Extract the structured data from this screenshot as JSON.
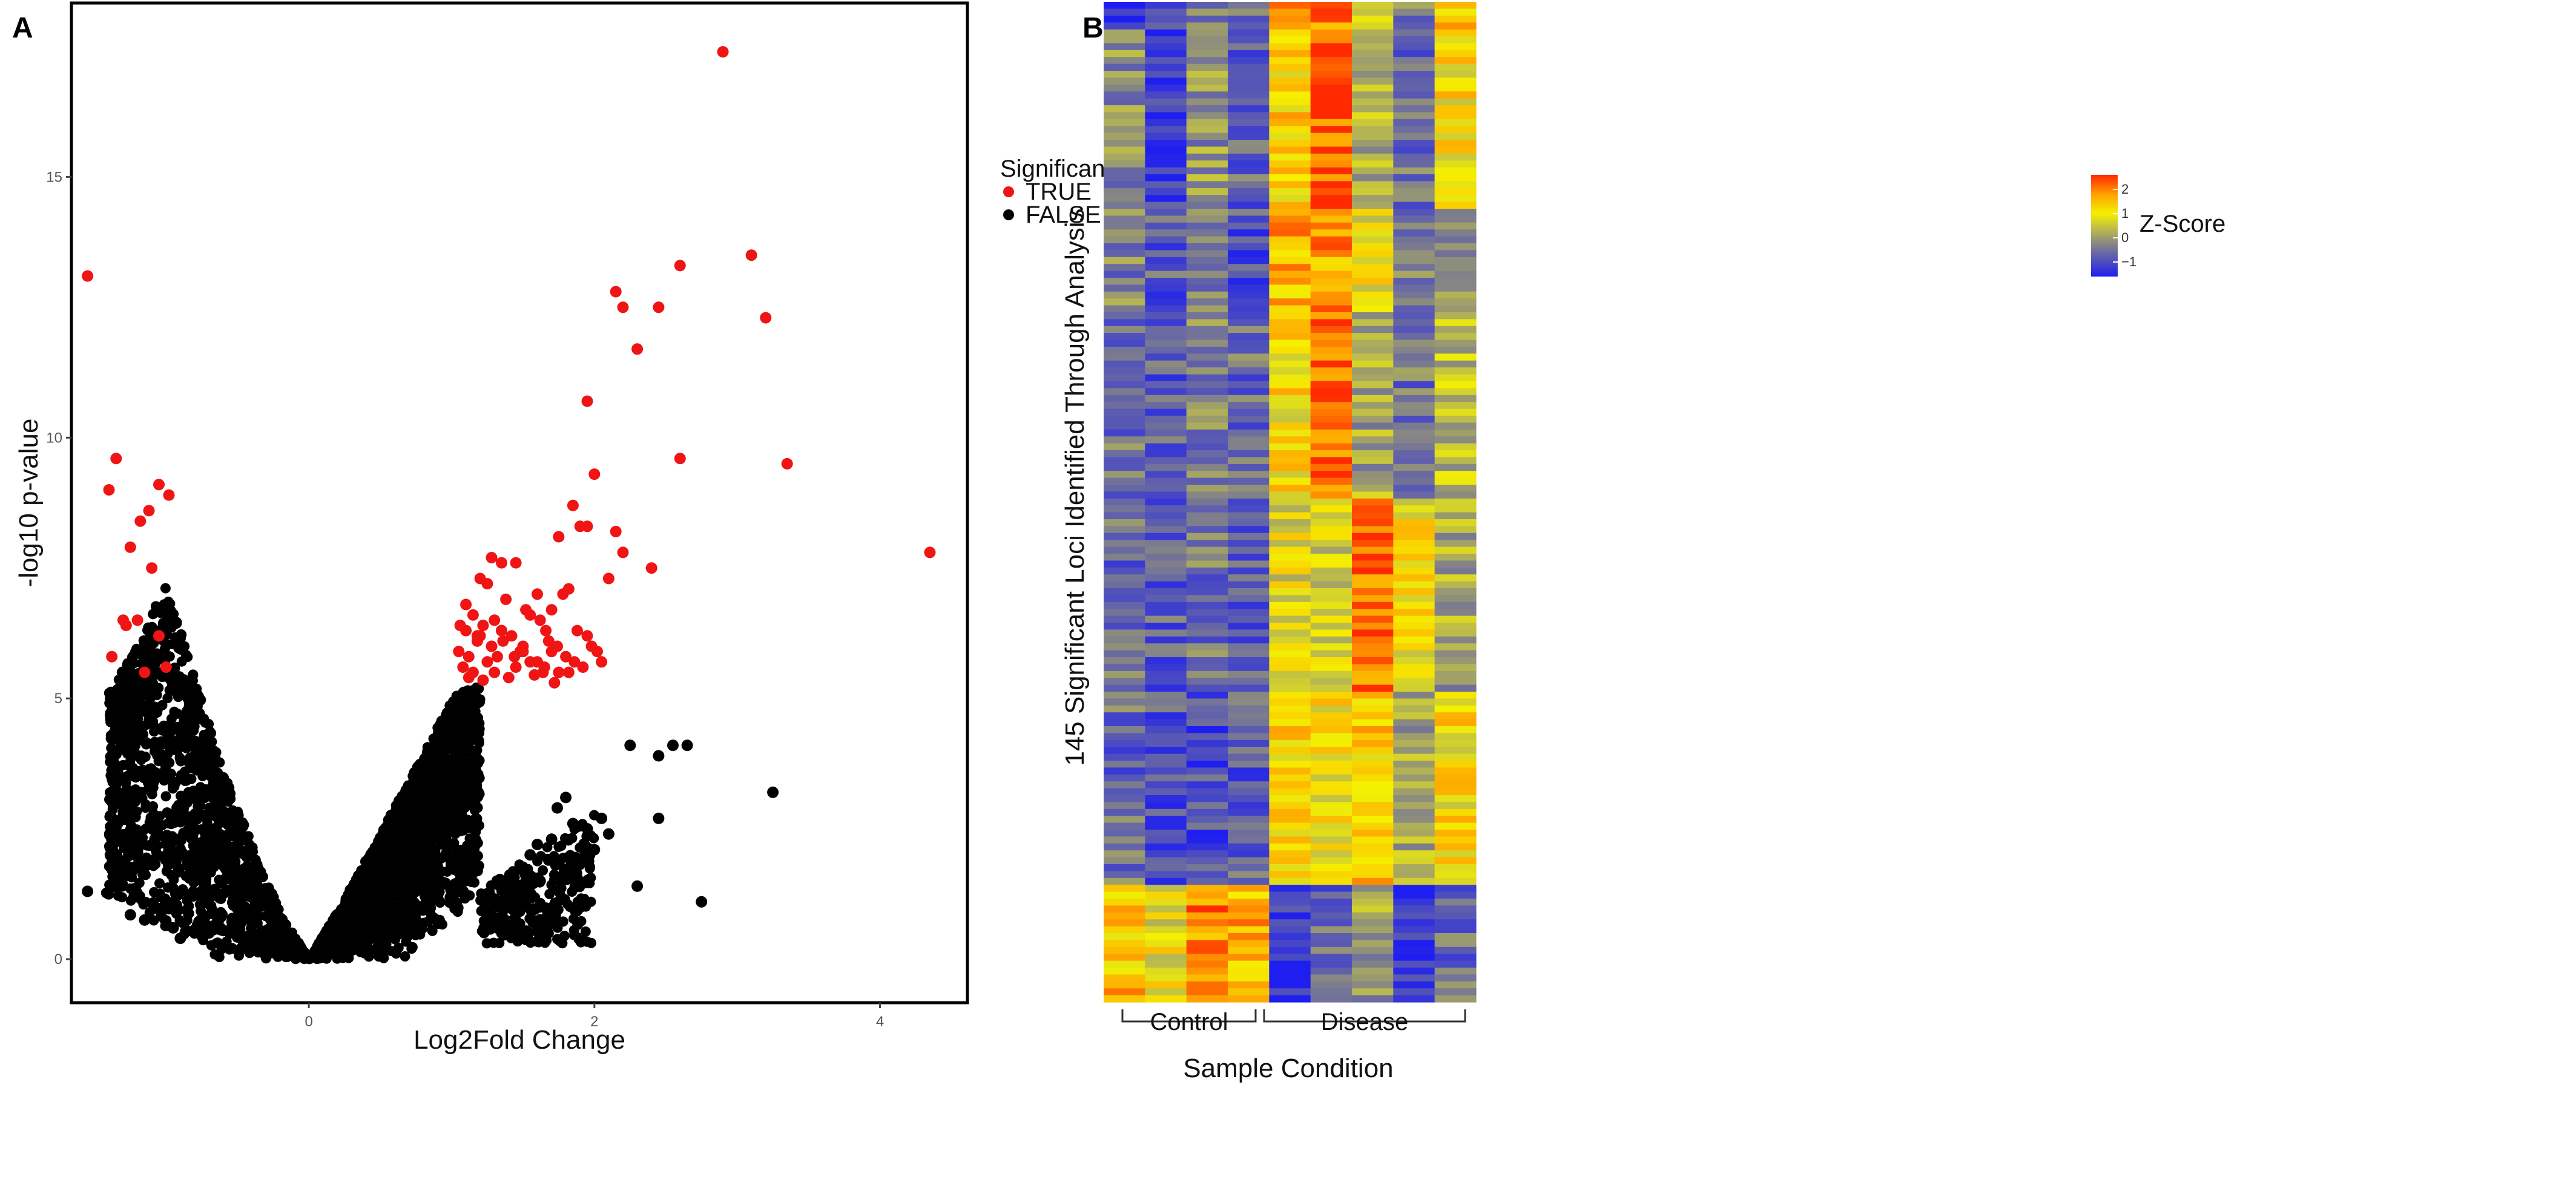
{
  "panel_a": {
    "label": "A",
    "chart_data": {
      "type": "scatter",
      "title": "",
      "xlabel": "Log2Fold Change",
      "ylabel": "-log10 p-value",
      "xlim": [
        -1.65,
        4.6
      ],
      "ylim": [
        -0.8,
        18.3
      ],
      "xticks": [
        0,
        2,
        4
      ],
      "xtick_labels": [
        "0",
        "2",
        "4"
      ],
      "yticks": [
        0,
        5,
        10,
        15
      ],
      "ytick_labels": [
        "0",
        "5",
        "10",
        "15"
      ],
      "grid": false,
      "legend": {
        "title": "Significance",
        "position": "right",
        "entries": [
          {
            "label": "TRUE",
            "color": "#f01414"
          },
          {
            "label": "FALSE",
            "color": "#000000"
          }
        ]
      },
      "series": [
        {
          "name": "TRUE",
          "color": "#f01414",
          "x": [
            2.9,
            3.1,
            3.2,
            2.6,
            2.2,
            2.15,
            2.45,
            2.3,
            1.95,
            2.6,
            3.35,
            4.35,
            -1.55,
            -1.35,
            -1.4,
            -1.05,
            -0.98,
            -1.18,
            -1.12,
            -1.25,
            -1.38,
            -1.1,
            -1.28,
            -1.2,
            -1.0,
            -1.05,
            -1.15,
            -1.3,
            1.75,
            1.85,
            1.9,
            1.95,
            2.0,
            2.15,
            2.2,
            1.82,
            1.6,
            1.45,
            1.35,
            1.28,
            1.25,
            1.2,
            1.15,
            1.1,
            1.05,
            1.08,
            1.12,
            1.18,
            1.22,
            1.3,
            1.35,
            1.42,
            1.5,
            1.55,
            1.62,
            1.7,
            1.78,
            1.15,
            1.25,
            1.32,
            1.4,
            1.48,
            1.55,
            1.65,
            1.72,
            1.8,
            1.88,
            1.98,
            2.05,
            2.1,
            2.4,
            1.38,
            1.52,
            1.68,
            1.12,
            1.22,
            1.3,
            1.45,
            1.58,
            1.75,
            1.92,
            2.02,
            1.06,
            1.18,
            1.28,
            1.36,
            1.44,
            1.6,
            1.66,
            1.7,
            1.82,
            1.95,
            1.1,
            1.2,
            1.35,
            1.5,
            1.64,
            1.74,
            1.86
          ],
          "y": [
            17.4,
            13.5,
            12.3,
            13.3,
            12.5,
            12.8,
            12.5,
            11.7,
            10.7,
            9.6,
            9.5,
            7.8,
            13.1,
            9.6,
            9.0,
            9.1,
            8.9,
            8.4,
            8.6,
            7.9,
            5.8,
            7.5,
            6.4,
            6.5,
            5.6,
            6.2,
            5.5,
            6.5,
            8.1,
            8.7,
            8.3,
            8.3,
            9.3,
            8.2,
            7.8,
            7.1,
            7.0,
            7.6,
            7.6,
            7.7,
            7.2,
            7.3,
            6.6,
            6.3,
            5.9,
            5.6,
            5.8,
            6.1,
            6.4,
            6.5,
            6.3,
            6.2,
            6.0,
            6.6,
            6.5,
            6.7,
            7.0,
            5.5,
            5.7,
            5.8,
            5.4,
            5.9,
            5.7,
            5.6,
            5.3,
            5.8,
            6.3,
            6.0,
            5.7,
            7.3,
            7.5,
            6.9,
            6.7,
            6.1,
            5.4,
            5.35,
            5.5,
            5.6,
            5.45,
            5.5,
            5.6,
            5.9,
            6.4,
            6.2,
            6.0,
            6.1,
            5.8,
            5.7,
            6.3,
            5.9,
            5.5,
            6.2,
            6.8,
            6.2,
            6.3,
            5.9,
            5.5,
            6.0,
            5.7
          ]
        },
        {
          "name": "FALSE",
          "color": "#000000",
          "x": [
            -1.55,
            -1.25,
            -1.15,
            -0.9,
            -0.7,
            -0.75,
            -0.6,
            -0.78,
            -0.88,
            -0.95,
            3.25,
            2.75,
            2.3,
            2.45,
            2.55,
            2.65,
            2.45,
            2.25,
            2.05,
            1.95,
            1.85,
            1.7,
            1.6,
            1.55,
            1.62,
            1.48,
            1.42,
            1.38,
            1.8,
            1.74,
            1.68,
            1.52,
            2.1,
            2.0
          ],
          "y": [
            1.3,
            0.85,
            0.75,
            0.4,
            0.5,
            0.45,
            0.55,
            0.65,
            0.7,
            0.6,
            3.2,
            1.1,
            1.4,
            2.7,
            4.1,
            4.1,
            3.9,
            4.1,
            2.7,
            2.5,
            2.6,
            2.3,
            2.2,
            2.0,
            1.5,
            1.3,
            1.1,
            1.35,
            3.1,
            2.9,
            1.9,
            1.6,
            2.4,
            2.1
          ],
          "bulk_envelope": {
            "description": "dense black point cloud forming a V-shape centered at (0,0)",
            "left_arm_max_y_per_x": {
              "x": [
                -1.4,
                -1.2,
                -1.0,
                -0.8,
                -0.6,
                -0.4,
                -0.2,
                0.0
              ],
              "y": [
                5.1,
                6.0,
                7.2,
                5.4,
                3.6,
                2.2,
                0.9,
                0.0
              ]
            },
            "right_arm_max_y_per_x": {
              "x": [
                0.0,
                0.2,
                0.4,
                0.6,
                0.8,
                1.0,
                1.2
              ],
              "y": [
                0.0,
                0.9,
                1.9,
                2.9,
                3.9,
                5.0,
                5.3
              ]
            },
            "right_tail_x_range": [
              1.2,
              2.0
            ],
            "right_tail_y_range": [
              0.3,
              2.8
            ]
          }
        }
      ]
    }
  },
  "panel_b": {
    "label": "B",
    "chart_data": {
      "type": "heatmap",
      "title": "",
      "xlabel": "Sample Condition",
      "ylabel": "145 Significant Loci Identified Through Analysis",
      "n_rows": 145,
      "n_columns": 9,
      "groups": [
        {
          "label": "Control",
          "columns": [
            1,
            2,
            3,
            4
          ]
        },
        {
          "label": "Disease",
          "columns": [
            5,
            6,
            7,
            8,
            9
          ]
        }
      ],
      "colorbar": {
        "title": "Z-Score",
        "ticks": [
          2,
          1,
          0,
          -1
        ],
        "tick_labels": [
          "2",
          "1",
          "0",
          "−1"
        ],
        "range": [
          -1.6,
          2.6
        ],
        "colors": [
          "#1e1ef0",
          "#7f7f8c",
          "#b8b850",
          "#f5f000",
          "#ffa500",
          "#ff2a00"
        ]
      },
      "column_mean_zscore_by_row_block": {
        "row_blocks": [
          {
            "rows": [
              1,
              4
            ],
            "values": [
              -1.4,
              -0.8,
              -0.3,
              -0.7,
              2.2,
              2.0,
              0.5,
              -0.3,
              1.4
            ]
          },
          {
            "rows": [
              5,
              30
            ],
            "values": [
              -0.2,
              -1.3,
              -0.1,
              -0.7,
              1.2,
              2.3,
              0.2,
              -0.6,
              1.1
            ]
          },
          {
            "rows": [
              31,
              45
            ],
            "values": [
              -0.3,
              -0.8,
              -0.4,
              -0.9,
              1.6,
              1.8,
              1.0,
              -0.5,
              0.1
            ]
          },
          {
            "rows": [
              46,
              72
            ],
            "values": [
              -0.5,
              -0.8,
              -0.3,
              -0.6,
              1.1,
              2.2,
              0.1,
              -0.5,
              0.4
            ]
          },
          {
            "rows": [
              73,
              100
            ],
            "values": [
              -0.6,
              -0.8,
              -0.5,
              -0.8,
              0.8,
              0.6,
              2.2,
              1.0,
              0.1
            ]
          },
          {
            "rows": [
              101,
              128
            ],
            "values": [
              -0.6,
              -0.9,
              -1.0,
              -0.8,
              1.2,
              1.0,
              1.4,
              0.1,
              1.1
            ]
          },
          {
            "rows": [
              129,
              145
            ],
            "values": [
              1.5,
              0.9,
              2.0,
              1.6,
              -1.2,
              -0.7,
              0.0,
              -1.3,
              -0.6
            ]
          }
        ]
      }
    }
  }
}
